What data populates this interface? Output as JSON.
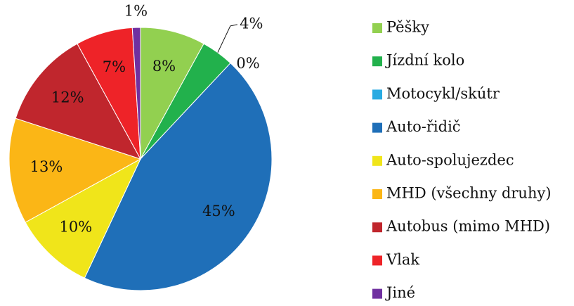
{
  "chart_data": {
    "type": "pie",
    "categories": [
      "Pěšky",
      "Jízdní kolo",
      "Motocykl/skútr",
      "Auto-řidič",
      "Auto-spolujezdec",
      "MHD (všechny druhy)",
      "Autobus (mimo MHD)",
      "Vlak",
      "Jiné"
    ],
    "values": [
      8,
      4,
      0,
      45,
      10,
      13,
      12,
      7,
      1
    ],
    "value_labels": [
      "8%",
      "4%",
      "0%",
      "45%",
      "10%",
      "13%",
      "12%",
      "7%",
      "1%"
    ],
    "colors": [
      "#92d050",
      "#22b14c",
      "#29abe2",
      "#1f6fb8",
      "#f0e51a",
      "#fbb616",
      "#c0262d",
      "#ee2328",
      "#7030a0"
    ],
    "legend": "right"
  }
}
